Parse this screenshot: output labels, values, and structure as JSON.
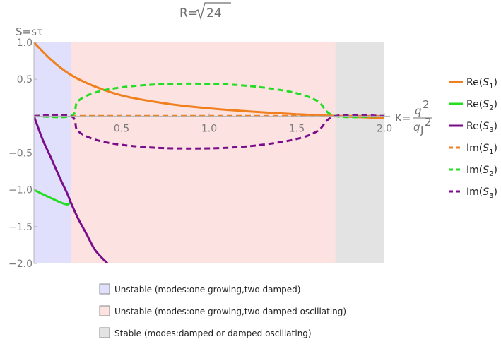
{
  "chart_data": {
    "type": "line",
    "title_prefix": "R=",
    "title_radicand": "24",
    "ylabel": "S=sτ",
    "xlabel_prefix": "K=",
    "xlabel_num": "q",
    "xlabel_den": "q",
    "xlabel_sub": "J",
    "xlabel_exp": "2",
    "xlim": [
      0,
      2.0
    ],
    "ylim": [
      -2.0,
      1.0
    ],
    "x_ticks": [
      "0.5",
      "1.0",
      "1.5",
      "2.0"
    ],
    "y_ticks": [
      "1.0",
      "0.5",
      "−0.5",
      "−1.0",
      "−1.5",
      "−2.0"
    ],
    "regions": [
      {
        "label": "Unstable (modes:one growing,two damped)",
        "x_range": [
          0,
          0.21
        ],
        "color": "#e0e0fc"
      },
      {
        "label": "Unstable (modes:one growing,two damped oscillating)",
        "x_range": [
          0.21,
          1.72
        ],
        "color": "#fde2e2"
      },
      {
        "label": "Stable (modes:damped or damped oscillating)",
        "x_range": [
          1.72,
          2.0
        ],
        "color": "#e3e3e3"
      }
    ],
    "series": [
      {
        "name": "Re(S",
        "sub": "1",
        "color": "#f07f1e",
        "dash": "solid",
        "x": [
          0,
          0.1,
          0.2,
          0.3,
          0.4,
          0.5,
          0.6,
          0.7,
          0.8,
          0.9,
          1.0,
          1.1,
          1.2,
          1.3,
          1.4,
          1.5,
          1.6,
          1.7,
          1.8,
          1.9,
          2.0
        ],
        "y": [
          1.0,
          0.76,
          0.575,
          0.45,
          0.355,
          0.28,
          0.23,
          0.19,
          0.155,
          0.128,
          0.105,
          0.085,
          0.068,
          0.052,
          0.038,
          0.025,
          0.014,
          0.004,
          -0.008,
          -0.018,
          -0.028
        ]
      },
      {
        "name": "Re(S",
        "sub": "2",
        "color": "#22dd22",
        "dash": "solid",
        "x": [
          0,
          0.05,
          0.1,
          0.15,
          0.19,
          0.21
        ],
        "y": [
          -1.0,
          -1.06,
          -1.115,
          -1.17,
          -1.2,
          -1.17
        ]
      },
      {
        "name": "Re(S",
        "sub": "3",
        "color": "#7a0e8a",
        "dash": "solid",
        "x": [
          0,
          0.05,
          0.1,
          0.15,
          0.19,
          0.21,
          0.25,
          0.3,
          0.35,
          0.42
        ],
        "y": [
          0.0,
          -0.32,
          -0.58,
          -0.85,
          -1.05,
          -1.17,
          -1.38,
          -1.6,
          -1.82,
          -2.0
        ]
      },
      {
        "name": "Im(S",
        "sub": "1",
        "color": "#f07f1e",
        "dash": "dashed",
        "x": [
          0,
          2.0
        ],
        "y": [
          0.0,
          0.0
        ]
      },
      {
        "name": "Im(S",
        "sub": "2",
        "color": "#22dd22",
        "dash": "dashed",
        "x": [
          0,
          0.21,
          0.25,
          0.35,
          0.5,
          0.7,
          0.9,
          1.1,
          1.3,
          1.5,
          1.62,
          1.72,
          2.0
        ],
        "y": [
          0.0,
          0.0,
          0.2,
          0.32,
          0.39,
          0.43,
          0.44,
          0.43,
          0.39,
          0.31,
          0.2,
          0.0,
          0.0
        ]
      },
      {
        "name": "Im(S",
        "sub": "3",
        "color": "#7a0e8a",
        "dash": "dashed",
        "x": [
          0,
          0.21,
          0.25,
          0.35,
          0.5,
          0.7,
          0.9,
          1.1,
          1.3,
          1.5,
          1.62,
          1.72,
          2.0
        ],
        "y": [
          0.0,
          0.0,
          -0.2,
          -0.32,
          -0.39,
          -0.43,
          -0.44,
          -0.43,
          -0.39,
          -0.31,
          -0.2,
          0.0,
          0.0
        ]
      }
    ]
  }
}
